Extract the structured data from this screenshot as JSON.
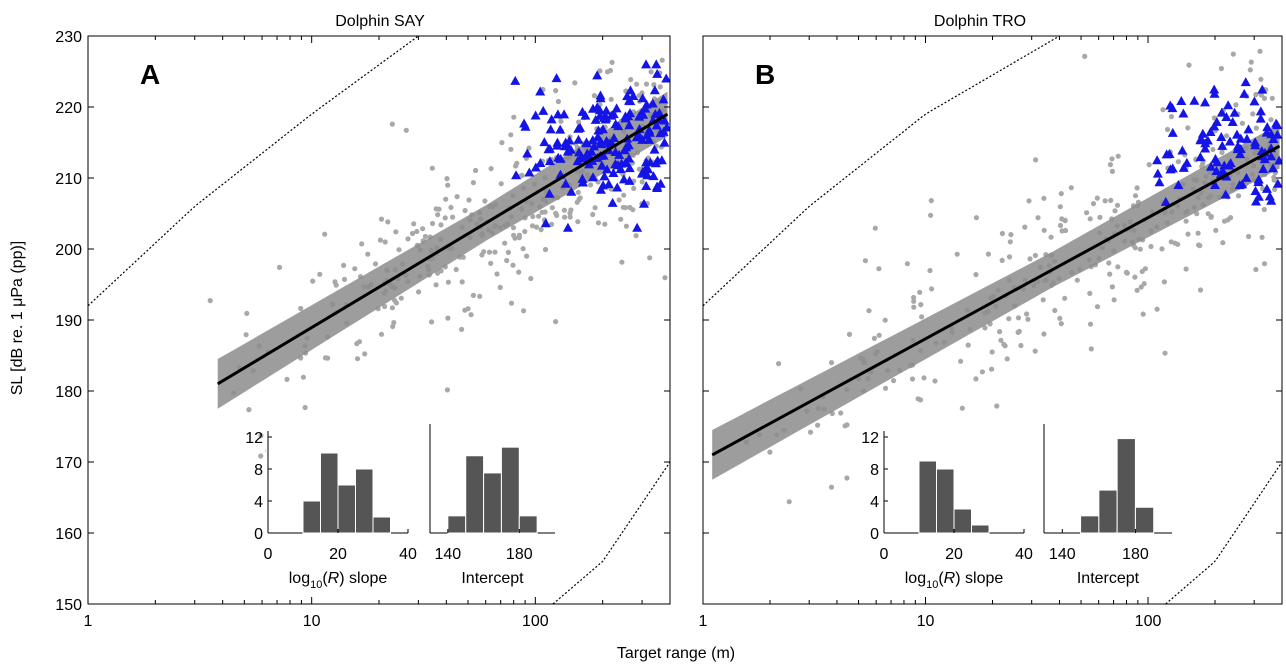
{
  "figure": {
    "shared_xlabel": "Target range (m)",
    "shared_ylabel": "SL [dB re. 1 μPa (pp)]"
  },
  "colors": {
    "scatter": "#a8a8a8",
    "triangle": "#1414e6",
    "fit": "#000000",
    "band": "#8c8c8c",
    "bar": "#555555"
  },
  "chart_data": [
    {
      "type": "scatter",
      "panel_label": "A",
      "title": "Dolphin SAY",
      "xscale": "log",
      "xlim": [
        1,
        400
      ],
      "xticks": [
        1,
        10,
        100
      ],
      "ylim": [
        150,
        230
      ],
      "yticks": [
        150,
        160,
        170,
        180,
        190,
        200,
        210,
        220,
        230
      ],
      "fit": {
        "x": [
          3.8,
          390
        ],
        "y": [
          181,
          219
        ],
        "band_halfwidth": 2.5
      },
      "curves": [
        {
          "x": [
            1,
            3,
            10,
            30
          ],
          "y": [
            192,
            206,
            219,
            230
          ]
        },
        {
          "x": [
            120,
            200,
            400
          ],
          "y": [
            150,
            156,
            170
          ]
        }
      ],
      "series": [
        {
          "marker": "circle",
          "color": "#a8a8a8",
          "n": 380,
          "x_range": [
            3.4,
            380
          ],
          "y_noise": 5
        },
        {
          "marker": "triangle",
          "color": "#1414e6",
          "n": 175,
          "x_range": [
            80,
            390
          ],
          "y_range": [
            203,
            226
          ]
        }
      ],
      "insets": [
        {
          "categories": [
            0,
            5,
            10,
            15,
            20,
            25,
            30,
            35,
            40
          ],
          "values": [
            0,
            0,
            4,
            10,
            6,
            8,
            2,
            0,
            0
          ],
          "bins": [
            [
              10,
              15
            ],
            [
              15,
              20
            ],
            [
              20,
              25
            ],
            [
              25,
              30
            ],
            [
              30,
              35
            ]
          ],
          "bin_values": [
            4,
            10,
            6,
            8,
            2
          ],
          "xlim": [
            0,
            40
          ],
          "xticks": [
            0,
            20,
            40
          ],
          "ylim": [
            0,
            12
          ],
          "yticks": [
            0,
            4,
            8,
            12
          ],
          "xlabel": "log10(R) slope"
        },
        {
          "bins": [
            [
              140,
              150
            ],
            [
              150,
              160
            ],
            [
              160,
              170
            ],
            [
              170,
              180
            ],
            [
              180,
              190
            ]
          ],
          "bin_values": [
            2,
            9,
            7,
            10,
            2
          ],
          "xlim": [
            130,
            200
          ],
          "xticks": [
            140,
            180
          ],
          "ylim": [
            0,
            12
          ],
          "xlabel": "Intercept"
        }
      ]
    },
    {
      "type": "scatter",
      "panel_label": "B",
      "title": "Dolphin TRO",
      "xscale": "log",
      "xlim": [
        1,
        400
      ],
      "xticks": [
        1,
        10,
        100
      ],
      "ylim": [
        150,
        230
      ],
      "yticks": [
        150,
        160,
        170,
        180,
        190,
        200,
        210,
        220,
        230
      ],
      "fit": {
        "x": [
          1.1,
          390
        ],
        "y": [
          171,
          214.5
        ],
        "band_halfwidth": 2.5
      },
      "curves": [
        {
          "x": [
            1,
            3,
            10,
            40
          ],
          "y": [
            192,
            206,
            219,
            230
          ]
        },
        {
          "x": [
            120,
            200,
            400
          ],
          "y": [
            150,
            156,
            170
          ]
        }
      ],
      "series": [
        {
          "marker": "circle",
          "color": "#a8a8a8",
          "n": 360,
          "x_range": [
            1.1,
            380
          ],
          "y_noise": 6
        },
        {
          "marker": "triangle",
          "color": "#1414e6",
          "n": 95,
          "x_range": [
            100,
            390
          ],
          "y_range": [
            204,
            225
          ]
        }
      ],
      "insets": [
        {
          "bins": [
            [
              10,
              15
            ],
            [
              15,
              20
            ],
            [
              20,
              25
            ],
            [
              25,
              30
            ],
            [
              30,
              35
            ]
          ],
          "bin_values": [
            9,
            8,
            3,
            1,
            0
          ],
          "xlim": [
            0,
            40
          ],
          "xticks": [
            0,
            20,
            40
          ],
          "ylim": [
            0,
            12
          ],
          "yticks": [
            0,
            4,
            8,
            12
          ],
          "xlabel": "log10(R) slope"
        },
        {
          "bins": [
            [
              150,
              160
            ],
            [
              160,
              170
            ],
            [
              170,
              180
            ],
            [
              180,
              190
            ]
          ],
          "bin_values": [
            2,
            5,
            11,
            3
          ],
          "xlim": [
            130,
            200
          ],
          "xticks": [
            140,
            180
          ],
          "ylim": [
            0,
            12
          ],
          "xlabel": "Intercept"
        }
      ]
    }
  ]
}
